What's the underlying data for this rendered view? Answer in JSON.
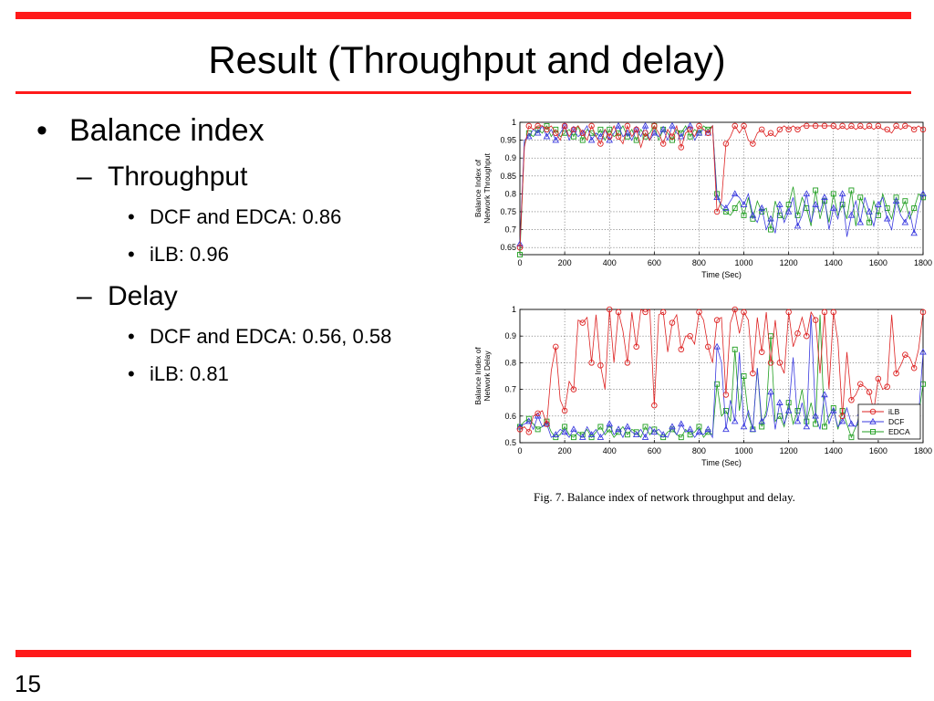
{
  "slide": {
    "title": "Result (Throughput and delay)",
    "page_number": "15",
    "bullets": {
      "balance": "Balance index",
      "throughput": "Throughput",
      "tp_dcf": "DCF and EDCA: 0.86",
      "tp_ilb": "iLB: 0.96",
      "delay": "Delay",
      "d_dcf": "DCF and EDCA: 0.56, 0.58",
      "d_ilb": "iLB: 0.81"
    },
    "bullet_markers": {
      "level1": "•",
      "level2": "–",
      "level3": "•"
    },
    "figure_caption": "Fig. 7.    Balance index of network throughput and delay."
  },
  "colors": {
    "accent_bar": "#ff1a1a",
    "ilb": "#dd2222",
    "dcf": "#3a3adf",
    "edca": "#1f9e1f"
  },
  "chart_data": [
    {
      "type": "line",
      "title": "",
      "xlabel": "Time (Sec)",
      "ylabel_lines": [
        "Balance Index of",
        "Network Throughput"
      ],
      "xlim": [
        0,
        1800
      ],
      "ylim": [
        0.63,
        1.0
      ],
      "x_ticks": [
        0,
        200,
        400,
        600,
        800,
        1000,
        1200,
        1400,
        1600,
        1800
      ],
      "y_ticks": [
        0.65,
        0.7,
        0.75,
        0.8,
        0.85,
        0.9,
        0.95,
        1
      ],
      "y_tick_labels": [
        "0.65",
        "0.7",
        "0.75",
        "0.8",
        "0.85",
        "0.9",
        "0.95",
        "1"
      ],
      "grid": true,
      "x": [
        0,
        20,
        40,
        60,
        80,
        100,
        120,
        140,
        160,
        180,
        200,
        220,
        240,
        260,
        280,
        300,
        320,
        340,
        360,
        380,
        400,
        420,
        440,
        460,
        480,
        500,
        520,
        540,
        560,
        580,
        600,
        620,
        640,
        660,
        680,
        700,
        720,
        740,
        760,
        780,
        800,
        820,
        840,
        860,
        880,
        900,
        920,
        940,
        960,
        980,
        1000,
        1020,
        1040,
        1060,
        1080,
        1100,
        1120,
        1140,
        1160,
        1180,
        1200,
        1220,
        1240,
        1260,
        1280,
        1300,
        1320,
        1340,
        1360,
        1380,
        1400,
        1420,
        1440,
        1460,
        1480,
        1500,
        1520,
        1540,
        1560,
        1580,
        1600,
        1620,
        1640,
        1660,
        1680,
        1700,
        1720,
        1740,
        1760,
        1780,
        1800
      ],
      "series": [
        {
          "name": "iLB",
          "marker": "circle",
          "values": [
            0.65,
            0.93,
            0.99,
            0.98,
            0.99,
            0.99,
            0.98,
            0.99,
            0.97,
            0.95,
            0.99,
            0.96,
            0.98,
            0.99,
            0.97,
            0.95,
            0.99,
            0.96,
            0.94,
            0.98,
            0.96,
            0.99,
            0.96,
            0.94,
            0.99,
            0.96,
            0.98,
            0.93,
            0.97,
            0.95,
            0.99,
            0.97,
            0.94,
            0.98,
            0.96,
            0.99,
            0.93,
            0.97,
            0.98,
            0.96,
            0.99,
            0.98,
            0.97,
            0.99,
            0.75,
            0.78,
            0.94,
            0.96,
            0.99,
            0.97,
            0.99,
            0.95,
            0.94,
            0.97,
            0.98,
            0.96,
            0.97,
            0.96,
            0.98,
            0.99,
            0.98,
            0.99,
            0.98,
            0.99,
            0.99,
            0.99,
            0.99,
            0.99,
            0.99,
            0.99,
            0.99,
            0.98,
            0.99,
            0.98,
            0.99,
            0.98,
            0.99,
            0.98,
            0.99,
            0.98,
            0.99,
            0.98,
            0.98,
            0.97,
            0.99,
            0.98,
            0.99,
            0.99,
            0.98,
            0.99,
            0.98
          ]
        },
        {
          "name": "DCF",
          "marker": "triangle",
          "values": [
            0.66,
            0.95,
            0.96,
            0.98,
            0.97,
            0.99,
            0.96,
            0.98,
            0.95,
            0.97,
            0.99,
            0.95,
            0.98,
            0.96,
            0.97,
            0.99,
            0.95,
            0.97,
            0.96,
            0.98,
            0.95,
            0.97,
            0.99,
            0.96,
            0.97,
            0.95,
            0.98,
            0.96,
            0.99,
            0.95,
            0.97,
            0.96,
            0.98,
            0.95,
            0.99,
            0.97,
            0.96,
            0.98,
            0.99,
            0.95,
            0.97,
            0.98,
            0.97,
            0.99,
            0.79,
            0.77,
            0.76,
            0.78,
            0.8,
            0.79,
            0.77,
            0.8,
            0.74,
            0.72,
            0.76,
            0.7,
            0.73,
            0.69,
            0.77,
            0.72,
            0.75,
            0.79,
            0.71,
            0.74,
            0.8,
            0.72,
            0.77,
            0.75,
            0.79,
            0.7,
            0.76,
            0.73,
            0.8,
            0.68,
            0.74,
            0.78,
            0.72,
            0.79,
            0.75,
            0.71,
            0.77,
            0.79,
            0.73,
            0.7,
            0.78,
            0.74,
            0.72,
            0.75,
            0.69,
            0.76,
            0.8
          ]
        },
        {
          "name": "EDCA",
          "marker": "square",
          "values": [
            0.63,
            0.94,
            0.97,
            0.96,
            0.98,
            0.97,
            0.99,
            0.96,
            0.98,
            0.96,
            0.97,
            0.98,
            0.96,
            0.99,
            0.95,
            0.98,
            0.97,
            0.96,
            0.98,
            0.95,
            0.98,
            0.96,
            0.97,
            0.99,
            0.96,
            0.98,
            0.95,
            0.98,
            0.96,
            0.97,
            0.99,
            0.95,
            0.98,
            0.97,
            0.95,
            0.98,
            0.97,
            0.99,
            0.96,
            0.98,
            0.97,
            0.99,
            0.98,
            0.99,
            0.8,
            0.76,
            0.75,
            0.74,
            0.76,
            0.78,
            0.74,
            0.79,
            0.73,
            0.78,
            0.75,
            0.76,
            0.7,
            0.78,
            0.74,
            0.73,
            0.77,
            0.82,
            0.74,
            0.79,
            0.76,
            0.71,
            0.81,
            0.73,
            0.78,
            0.72,
            0.8,
            0.74,
            0.77,
            0.73,
            0.81,
            0.71,
            0.79,
            0.76,
            0.72,
            0.78,
            0.74,
            0.8,
            0.76,
            0.73,
            0.79,
            0.75,
            0.78,
            0.73,
            0.76,
            0.8,
            0.79
          ]
        }
      ]
    },
    {
      "type": "line",
      "title": "",
      "xlabel": "Time (Sec)",
      "ylabel_lines": [
        "Balance Index of",
        "Network Delay"
      ],
      "xlim": [
        0,
        1800
      ],
      "ylim": [
        0.5,
        1.0
      ],
      "x_ticks": [
        0,
        200,
        400,
        600,
        800,
        1000,
        1200,
        1400,
        1600,
        1800
      ],
      "y_ticks": [
        0.5,
        0.6,
        0.7,
        0.8,
        0.9,
        1
      ],
      "y_tick_labels": [
        "0.5",
        "0.6",
        "0.7",
        "0.8",
        "0.9",
        "1"
      ],
      "grid": true,
      "legend_position": "lower-right",
      "x": [
        0,
        20,
        40,
        60,
        80,
        100,
        120,
        140,
        160,
        180,
        200,
        220,
        240,
        260,
        280,
        300,
        320,
        340,
        360,
        380,
        400,
        420,
        440,
        460,
        480,
        500,
        520,
        540,
        560,
        580,
        600,
        620,
        640,
        660,
        680,
        700,
        720,
        740,
        760,
        780,
        800,
        820,
        840,
        860,
        880,
        900,
        920,
        940,
        960,
        980,
        1000,
        1020,
        1040,
        1060,
        1080,
        1100,
        1120,
        1140,
        1160,
        1180,
        1200,
        1220,
        1240,
        1260,
        1280,
        1300,
        1320,
        1340,
        1360,
        1380,
        1400,
        1420,
        1440,
        1460,
        1480,
        1500,
        1520,
        1540,
        1560,
        1580,
        1600,
        1620,
        1640,
        1660,
        1680,
        1700,
        1720,
        1740,
        1760,
        1780,
        1800
      ],
      "series": [
        {
          "name": "iLB",
          "marker": "circle",
          "values": [
            0.55,
            0.56,
            0.54,
            0.6,
            0.61,
            0.62,
            0.57,
            0.77,
            0.86,
            0.66,
            0.62,
            0.73,
            0.7,
            0.96,
            0.95,
            0.97,
            0.8,
            0.98,
            0.79,
            0.7,
            1.0,
            0.8,
            0.99,
            0.92,
            0.8,
            0.99,
            0.86,
            1.0,
            0.99,
            1.0,
            0.64,
            0.98,
            0.99,
            0.84,
            0.95,
            0.98,
            0.85,
            0.9,
            0.9,
            0.87,
            0.99,
            0.96,
            0.86,
            0.8,
            0.96,
            0.97,
            0.68,
            0.95,
            1.0,
            0.91,
            0.99,
            0.96,
            0.76,
            0.97,
            0.84,
            0.99,
            0.8,
            0.96,
            0.8,
            0.76,
            0.99,
            0.86,
            0.91,
            0.97,
            0.9,
            0.99,
            0.96,
            0.76,
            0.99,
            0.7,
            0.99,
            0.88,
            0.6,
            0.84,
            0.66,
            0.68,
            0.72,
            0.71,
            0.69,
            0.62,
            0.74,
            0.7,
            0.71,
            0.98,
            0.76,
            0.79,
            0.83,
            0.82,
            0.78,
            0.85,
            0.99
          ]
        },
        {
          "name": "DCF",
          "marker": "triangle",
          "values": [
            0.56,
            0.57,
            0.58,
            0.55,
            0.6,
            0.56,
            0.57,
            0.52,
            0.53,
            0.55,
            0.54,
            0.52,
            0.55,
            0.53,
            0.52,
            0.56,
            0.53,
            0.55,
            0.52,
            0.54,
            0.57,
            0.53,
            0.55,
            0.52,
            0.56,
            0.54,
            0.53,
            0.55,
            0.52,
            0.56,
            0.54,
            0.55,
            0.53,
            0.52,
            0.56,
            0.53,
            0.57,
            0.54,
            0.55,
            0.52,
            0.54,
            0.53,
            0.55,
            0.52,
            0.86,
            0.8,
            0.55,
            0.66,
            0.58,
            0.84,
            0.56,
            0.62,
            0.55,
            0.78,
            0.58,
            0.6,
            0.69,
            0.55,
            0.65,
            0.57,
            0.62,
            0.82,
            0.58,
            0.65,
            0.56,
            0.98,
            0.6,
            0.55,
            0.68,
            0.57,
            0.62,
            0.56,
            0.58,
            0.63,
            0.57,
            0.56,
            0.61,
            0.55,
            0.57,
            0.58,
            0.56,
            0.6,
            0.63,
            0.57,
            0.55,
            0.59,
            0.62,
            0.57,
            0.61,
            0.6,
            0.84
          ]
        },
        {
          "name": "EDCA",
          "marker": "square",
          "values": [
            0.56,
            0.58,
            0.59,
            0.57,
            0.55,
            0.56,
            0.58,
            0.54,
            0.52,
            0.53,
            0.56,
            0.53,
            0.52,
            0.54,
            0.53,
            0.55,
            0.52,
            0.54,
            0.56,
            0.53,
            0.55,
            0.52,
            0.54,
            0.56,
            0.53,
            0.55,
            0.54,
            0.52,
            0.56,
            0.53,
            0.55,
            0.53,
            0.52,
            0.54,
            0.55,
            0.53,
            0.52,
            0.55,
            0.53,
            0.54,
            0.56,
            0.52,
            0.54,
            0.53,
            0.72,
            0.6,
            0.62,
            0.58,
            0.85,
            0.62,
            0.75,
            0.6,
            0.55,
            0.78,
            0.56,
            0.62,
            0.9,
            0.58,
            0.6,
            0.56,
            0.65,
            0.57,
            0.62,
            0.7,
            0.58,
            0.65,
            0.57,
            0.98,
            0.56,
            0.6,
            0.63,
            0.55,
            0.62,
            0.57,
            0.52,
            0.56,
            0.58,
            0.55,
            0.57,
            0.58,
            0.56,
            0.59,
            0.55,
            0.58,
            0.56,
            0.57,
            0.6,
            0.58,
            0.62,
            0.6,
            0.72
          ]
        }
      ]
    }
  ]
}
